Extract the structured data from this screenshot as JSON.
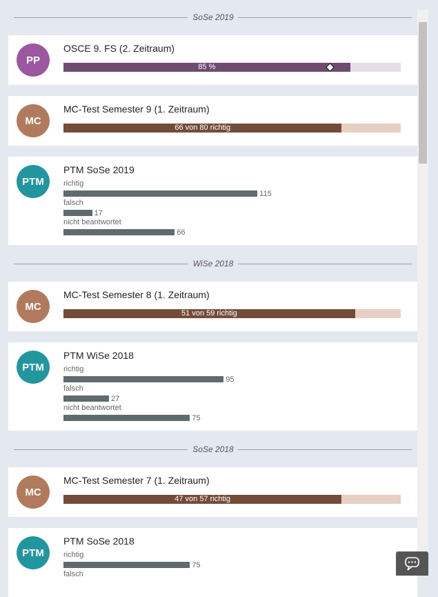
{
  "sections": [
    {
      "label": "SoSe 2019",
      "items": [
        {
          "badge": "PP",
          "color": "#9b57a0",
          "bar_color": "#6e4b6f",
          "track_color": "#e6dde6",
          "title": "OSCE 9. FS (2. Zeitraum)",
          "value": 85,
          "value_label": "85 %",
          "marker": 79
        },
        {
          "badge": "MC",
          "color": "#b27a5c",
          "bar_color": "#734c39",
          "track_color": "#e8cfc3",
          "title": "MC-Test Semester 9 (1. Zeitraum)",
          "correct": 66,
          "total": 80,
          "label": "66 von 80 richtig"
        },
        {
          "badge": "PTM",
          "color": "#21969f",
          "title": "PTM SoSe 2019",
          "rows": [
            {
              "label": "richtig",
              "value": 115
            },
            {
              "label": "falsch",
              "value": 17
            },
            {
              "label": "nicht beantwortet",
              "value": 66
            }
          ]
        }
      ]
    },
    {
      "label": "WiSe 2018",
      "items": [
        {
          "badge": "MC",
          "color": "#b27a5c",
          "bar_color": "#734c39",
          "track_color": "#e8cfc3",
          "title": "MC-Test Semester 8 (1. Zeitraum)",
          "correct": 51,
          "total": 59,
          "label": "51 von 59 richtig"
        },
        {
          "badge": "PTM",
          "color": "#21969f",
          "title": "PTM WiSe 2018",
          "rows": [
            {
              "label": "richtig",
              "value": 95
            },
            {
              "label": "falsch",
              "value": 27
            },
            {
              "label": "nicht beantwortet",
              "value": 75
            }
          ]
        }
      ]
    },
    {
      "label": "SoSe 2018",
      "items": [
        {
          "badge": "MC",
          "color": "#b27a5c",
          "bar_color": "#734c39",
          "track_color": "#e8cfc3",
          "title": "MC-Test Semester 7 (1. Zeitraum)",
          "correct": 47,
          "total": 57,
          "label": "47 von 57 richtig"
        },
        {
          "badge": "PTM",
          "color": "#21969f",
          "title": "PTM SoSe 2018",
          "rows": [
            {
              "label": "richtig",
              "value": 75
            },
            {
              "label": "falsch"
            }
          ]
        }
      ]
    }
  ]
}
